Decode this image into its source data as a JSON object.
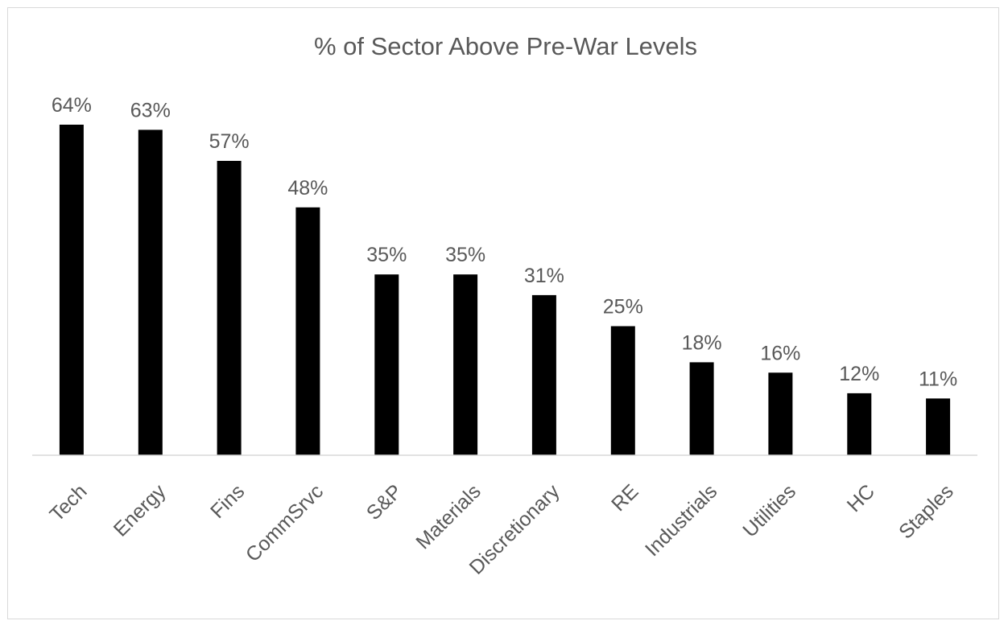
{
  "chart_data": {
    "type": "bar",
    "title": "% of Sector Above Pre-War Levels",
    "categories": [
      "Tech",
      "Energy",
      "Fins",
      "CommSrvc",
      "S&P",
      "Materials",
      "Discretionary",
      "RE",
      "Industrials",
      "Utilities",
      "HC",
      "Staples"
    ],
    "values": [
      64,
      63,
      57,
      48,
      35,
      35,
      31,
      25,
      18,
      16,
      12,
      11
    ],
    "value_labels": [
      "64%",
      "63%",
      "57%",
      "48%",
      "35%",
      "35%",
      "31%",
      "25%",
      "18%",
      "16%",
      "12%",
      "11%"
    ],
    "ylim": [
      0,
      64
    ],
    "grid": false,
    "legend": "none",
    "bar_color": "#000000",
    "text_color": "#595959",
    "axis_color": "#d9d9d9"
  }
}
